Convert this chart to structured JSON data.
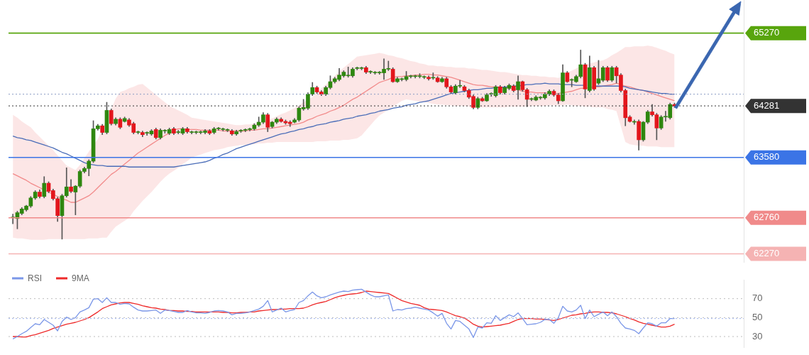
{
  "chart_data": [
    {
      "type": "candlestick",
      "tick_labels": "y",
      "legend": false,
      "ylim": [
        62150,
        65720
      ],
      "yticks": [
        62270,
        62760,
        63580,
        64281,
        65270
      ],
      "colors": [
        "#2e870f",
        "#2e870f",
        "#2e870f",
        "#2e870f",
        "#2e870f",
        "#2e870f",
        "#e3161c",
        "#2e870f",
        "#e3161c",
        "#e3161c",
        "#e3161c",
        "#2e870f",
        "#2e870f",
        "#e3161c",
        "#2e870f",
        "#2e870f",
        "#2e870f",
        "#2e870f",
        "#2e870f",
        "#2e870f",
        "#e3161c",
        "#2e870f",
        "#e3161c",
        "#2e870f",
        "#e3161c",
        "#2e870f",
        "#e3161c",
        "#e3161c",
        "#2e870f",
        "#e3161c",
        "#2e870f",
        "#2e870f",
        "#e3161c",
        "#2e870f",
        "#2e870f",
        "#2e870f",
        "#e3161c",
        "#2e870f",
        "#2e870f",
        "#e3161c",
        "#2e870f",
        "#2e870f",
        "#2e870f",
        "#2e870f",
        "#e3161c",
        "#2e870f",
        "#2e870f",
        "#2e870f",
        "#2e870f",
        "#e3161c",
        "#2e870f",
        "#2e870f",
        "#2e870f",
        "#2e870f",
        "#2e870f",
        "#2e870f",
        "#2e870f",
        "#e3161c",
        "#2e870f",
        "#2e870f",
        "#e3161c",
        "#e3161c",
        "#e3161c",
        "#2e870f",
        "#2e870f",
        "#2e870f",
        "#2e870f",
        "#2e870f",
        "#e3161c",
        "#e3161c",
        "#2e870f",
        "#2e870f",
        "#2e870f",
        "#2e870f",
        "#2e870f",
        "#2e870f",
        "#2e870f",
        "#2e870f",
        "#2e870f",
        "#e3161c",
        "#2e870f",
        "#2e870f",
        "#2e870f",
        "#2e870f",
        "#2e870f",
        "#e3161c",
        "#2e870f",
        "#2e870f",
        "#2e870f",
        "#2e870f",
        "#2e870f",
        "#2e870f",
        "#2e870f",
        "#e3161c",
        "#2e870f",
        "#e3161c",
        "#2e870f",
        "#e3161c",
        "#e3161c",
        "#2e870f",
        "#2e870f",
        "#e3161c",
        "#e3161c",
        "#e3161c",
        "#2e870f",
        "#e3161c",
        "#2e870f",
        "#2e870f",
        "#2e870f",
        "#e3161c",
        "#2e870f",
        "#2e870f",
        "#e3161c",
        "#2e870f",
        "#e3161c",
        "#e3161c",
        "#2e870f",
        "#2e870f",
        "#2e870f",
        "#2e870f",
        "#2e870f",
        "#e3161c",
        "#e3161c",
        "#2e870f",
        "#e3161c",
        "#2e870f",
        "#2e870f",
        "#2e870f",
        "#e3161c",
        "#2e870f",
        "#e3161c",
        "#2e870f",
        "#2e870f",
        "#e3161c",
        "#2e870f",
        "#e3161c",
        "#e3161c",
        "#e3161c",
        "#e3161c",
        "#2e870f",
        "#e3161c",
        "#2e870f",
        "#2e870f",
        "#e3161c",
        "#e3161c",
        "#2e870f",
        "#2e870f",
        "#2e870f",
        "#e3161c"
      ],
      "categories": [
        null,
        null,
        null,
        null,
        null,
        null,
        null,
        null,
        null,
        null,
        null,
        null,
        null,
        null,
        null,
        null,
        null,
        null,
        null,
        null,
        null,
        null,
        null,
        null,
        null,
        null,
        null,
        null,
        null,
        null,
        null,
        null,
        null,
        null,
        null,
        null,
        null,
        null,
        null,
        null,
        null,
        null,
        null,
        null,
        null,
        null,
        null,
        null,
        null,
        null,
        null,
        null,
        null,
        null,
        null,
        null,
        null,
        null,
        null,
        null,
        null,
        null,
        null,
        null,
        null,
        null,
        null,
        null,
        null,
        null,
        null,
        null,
        null,
        null,
        null,
        null,
        null,
        null,
        null,
        null,
        null,
        null,
        null,
        null,
        null,
        null,
        null,
        null,
        null,
        null,
        null,
        null,
        null,
        null,
        null,
        null,
        null,
        null,
        null,
        null,
        null,
        null,
        null,
        null,
        null,
        null,
        null,
        null,
        null,
        null,
        null,
        null,
        null,
        null,
        null,
        null,
        null,
        null,
        null,
        null,
        null,
        null,
        null,
        null,
        null,
        null,
        null,
        null,
        null,
        null,
        null,
        null,
        null,
        null,
        null,
        null,
        null,
        null,
        null,
        null,
        null,
        null,
        null,
        null,
        null,
        null,
        null,
        null,
        null
      ],
      "ohlc": [
        [
          62760,
          62810,
          62680,
          62770
        ],
        [
          62750,
          62850,
          62610,
          62830
        ],
        [
          62820,
          62900,
          62800,
          62880
        ],
        [
          62870,
          62930,
          62850,
          62920
        ],
        [
          62920,
          63050,
          62900,
          63030
        ],
        [
          63030,
          63130,
          63010,
          63110
        ],
        [
          63110,
          63140,
          63030,
          63050
        ],
        [
          63050,
          63320,
          63030,
          63230
        ],
        [
          63230,
          63250,
          63100,
          63120
        ],
        [
          63130,
          63150,
          63000,
          63020
        ],
        [
          63020,
          63040,
          62710,
          62790
        ],
        [
          62790,
          63080,
          62470,
          63060
        ],
        [
          63060,
          63440,
          63040,
          63180
        ],
        [
          63180,
          63280,
          63100,
          63120
        ],
        [
          63110,
          63200,
          62800,
          63190
        ],
        [
          63190,
          63410,
          63170,
          63390
        ],
        [
          63390,
          63450,
          63370,
          63430
        ],
        [
          63430,
          63550,
          63330,
          63530
        ],
        [
          63530,
          64080,
          63510,
          63970
        ],
        [
          63970,
          64030,
          63950,
          64010
        ],
        [
          64010,
          64030,
          63890,
          63920
        ],
        [
          63920,
          64330,
          63900,
          64220
        ],
        [
          64220,
          64240,
          64020,
          64040
        ],
        [
          64040,
          64120,
          64020,
          64100
        ],
        [
          64100,
          64120,
          63970,
          63990
        ],
        [
          64070,
          64130,
          64060,
          64110
        ],
        [
          64090,
          64110,
          64000,
          64020
        ],
        [
          64040,
          64060,
          63900,
          63920
        ],
        [
          63920,
          63940,
          63900,
          63920
        ],
        [
          63920,
          63940,
          63860,
          63890
        ],
        [
          63910,
          63930,
          63880,
          63910
        ],
        [
          63900,
          63960,
          63880,
          63940
        ],
        [
          63960,
          63980,
          63830,
          63850
        ],
        [
          63850,
          63970,
          63830,
          63950
        ],
        [
          63940,
          63960,
          63910,
          63940
        ],
        [
          63910,
          63980,
          63890,
          63960
        ],
        [
          63970,
          63990,
          63890,
          63910
        ],
        [
          63920,
          63950,
          63900,
          63920
        ],
        [
          63910,
          63990,
          63890,
          63970
        ],
        [
          63970,
          63990,
          63910,
          63930
        ],
        [
          63920,
          63940,
          63900,
          63920
        ],
        [
          63920,
          63940,
          63900,
          63920
        ],
        [
          63920,
          63940,
          63900,
          63920
        ],
        [
          63920,
          63960,
          63900,
          63940
        ],
        [
          63940,
          63960,
          63890,
          63910
        ],
        [
          63920,
          63990,
          63900,
          63970
        ],
        [
          63970,
          63990,
          63950,
          63970
        ],
        [
          63960,
          63980,
          63940,
          63960
        ],
        [
          63950,
          63970,
          63930,
          63950
        ],
        [
          63940,
          63960,
          63880,
          63900
        ],
        [
          63900,
          63950,
          63880,
          63930
        ],
        [
          63940,
          63960,
          63920,
          63940
        ],
        [
          63950,
          63970,
          63930,
          63950
        ],
        [
          63960,
          63980,
          63940,
          63960
        ],
        [
          63970,
          64040,
          63950,
          64020
        ],
        [
          64020,
          64130,
          64000,
          64060
        ],
        [
          64060,
          64190,
          64040,
          64160
        ],
        [
          64160,
          64180,
          63930,
          63990
        ],
        [
          64000,
          64070,
          63980,
          64060
        ],
        [
          64060,
          64120,
          64040,
          64100
        ],
        [
          64100,
          64120,
          64060,
          64070
        ],
        [
          64070,
          64090,
          64030,
          64050
        ],
        [
          64060,
          64080,
          64000,
          64040
        ],
        [
          64060,
          64110,
          64050,
          64090
        ],
        [
          64090,
          64270,
          64070,
          64250
        ],
        [
          64240,
          64370,
          64220,
          64260
        ],
        [
          64250,
          64460,
          64230,
          64440
        ],
        [
          64440,
          64600,
          64420,
          64530
        ],
        [
          64530,
          64550,
          64450,
          64470
        ],
        [
          64470,
          64490,
          64420,
          64440
        ],
        [
          64440,
          64550,
          64420,
          64530
        ],
        [
          64530,
          64690,
          64510,
          64610
        ],
        [
          64610,
          64670,
          64590,
          64650
        ],
        [
          64640,
          64790,
          64620,
          64700
        ],
        [
          64690,
          64760,
          64670,
          64740
        ],
        [
          64690,
          64810,
          64670,
          64690
        ],
        [
          64690,
          64800,
          64670,
          64780
        ],
        [
          64790,
          64810,
          64770,
          64790
        ],
        [
          64790,
          64810,
          64770,
          64790
        ],
        [
          64800,
          64820,
          64720,
          64740
        ],
        [
          64740,
          64760,
          64720,
          64740
        ],
        [
          64730,
          64750,
          64710,
          64730
        ],
        [
          64730,
          64750,
          64710,
          64730
        ],
        [
          64730,
          64920,
          64640,
          64780
        ],
        [
          64780,
          64890,
          64760,
          64780
        ],
        [
          64780,
          64800,
          64600,
          64610
        ],
        [
          64610,
          64670,
          64600,
          64650
        ],
        [
          64640,
          64660,
          64620,
          64640
        ],
        [
          64640,
          64750,
          64620,
          64680
        ],
        [
          64680,
          64700,
          64660,
          64680
        ],
        [
          64680,
          64700,
          64660,
          64680
        ],
        [
          64680,
          64720,
          64660,
          64680
        ],
        [
          64670,
          64690,
          64650,
          64670
        ],
        [
          64670,
          64690,
          64630,
          64650
        ],
        [
          64660,
          64730,
          64640,
          64660
        ],
        [
          64660,
          64680,
          64600,
          64610
        ],
        [
          64610,
          64670,
          64600,
          64650
        ],
        [
          64650,
          64670,
          64520,
          64540
        ],
        [
          64540,
          64560,
          64450,
          64470
        ],
        [
          64460,
          64570,
          64440,
          64550
        ],
        [
          64550,
          64630,
          64530,
          64550
        ],
        [
          64540,
          64560,
          64470,
          64490
        ],
        [
          64490,
          64510,
          64380,
          64400
        ],
        [
          64410,
          64430,
          64240,
          64260
        ],
        [
          64260,
          64400,
          64240,
          64380
        ],
        [
          64380,
          64400,
          64340,
          64350
        ],
        [
          64350,
          64450,
          64340,
          64430
        ],
        [
          64440,
          64460,
          64410,
          64440
        ],
        [
          64420,
          64560,
          64400,
          64540
        ],
        [
          64540,
          64560,
          64440,
          64460
        ],
        [
          64460,
          64550,
          64440,
          64530
        ],
        [
          64520,
          64580,
          64500,
          64560
        ],
        [
          64550,
          64570,
          64470,
          64490
        ],
        [
          64500,
          64690,
          64370,
          64610
        ],
        [
          64610,
          64620,
          64480,
          64500
        ],
        [
          64500,
          64520,
          64270,
          64370
        ],
        [
          64370,
          64390,
          64350,
          64370
        ],
        [
          64360,
          64420,
          64350,
          64400
        ],
        [
          64390,
          64410,
          64370,
          64390
        ],
        [
          64390,
          64460,
          64370,
          64440
        ],
        [
          64440,
          64500,
          64420,
          64480
        ],
        [
          64480,
          64500,
          64410,
          64430
        ],
        [
          64430,
          64450,
          64310,
          64350
        ],
        [
          64350,
          64840,
          64340,
          64730
        ],
        [
          64730,
          64750,
          64600,
          64610
        ],
        [
          64630,
          64650,
          64540,
          64630
        ],
        [
          64610,
          64700,
          64600,
          64680
        ],
        [
          64680,
          65040,
          64660,
          64840
        ],
        [
          64840,
          64860,
          64390,
          64510
        ],
        [
          64490,
          64960,
          64470,
          64800
        ],
        [
          64800,
          64820,
          64490,
          64510
        ],
        [
          64590,
          64900,
          64570,
          64650
        ],
        [
          64630,
          64820,
          64610,
          64800
        ],
        [
          64800,
          64820,
          64610,
          64630
        ],
        [
          64630,
          64820,
          64610,
          64800
        ],
        [
          64800,
          64820,
          64590,
          64690
        ],
        [
          64700,
          64720,
          64470,
          64490
        ],
        [
          64490,
          64510,
          64010,
          64120
        ],
        [
          64130,
          64150,
          64060,
          64070
        ],
        [
          64060,
          64090,
          64030,
          64060
        ],
        [
          64070,
          64090,
          63680,
          63820
        ],
        [
          63820,
          64070,
          63800,
          64060
        ],
        [
          64060,
          64220,
          64040,
          64200
        ],
        [
          64200,
          64300,
          64140,
          64160
        ],
        [
          64160,
          64180,
          63820,
          63980
        ],
        [
          63980,
          64150,
          63960,
          64130
        ],
        [
          64130,
          64210,
          64070,
          64130
        ],
        [
          64120,
          64320,
          64100,
          64300
        ],
        [
          64300,
          64320,
          64260,
          64281
        ]
      ],
      "series": [
        {
          "type": "line",
          "color": "#4a6db8",
          "values": [
            63870,
            63850,
            63840,
            63820,
            63810,
            63790,
            63770,
            63750,
            63730,
            63710,
            63680,
            63650,
            63630,
            63600,
            63570,
            63540,
            63510,
            63490,
            63480,
            63470,
            63470,
            63460,
            63460,
            63460,
            63460,
            63460,
            63450,
            63450,
            63450,
            63450,
            63450,
            63450,
            63450,
            63450,
            63450,
            63450,
            63450,
            63460,
            63470,
            63480,
            63490,
            63500,
            63510,
            63520,
            63540,
            63570,
            63590,
            63620,
            63640,
            63670,
            63700,
            63720,
            63740,
            63760,
            63780,
            63800,
            63820,
            63840,
            63860,
            63880,
            63900,
            63910,
            63930,
            63940,
            63960,
            63970,
            63990,
            64000,
            64020,
            64030,
            64040,
            64060,
            64070,
            64080,
            64100,
            64110,
            64120,
            64140,
            64150,
            64160,
            64180,
            64190,
            64210,
            64220,
            64230,
            64250,
            64260,
            64270,
            64290,
            64300,
            64310,
            64330,
            64340,
            64350,
            64370,
            64390,
            64410,
            64430,
            64450,
            64460,
            64470,
            64480,
            64490,
            64500,
            64500,
            64510,
            64520,
            64520,
            64530,
            64530,
            64540,
            64540,
            64550,
            64550,
            64560,
            64570,
            64570,
            64580,
            64580,
            64590,
            64580,
            64580,
            64580,
            64570,
            64570,
            64570,
            64560,
            64560,
            64560,
            null,
            64550,
            64550,
            64550,
            64550,
            64550,
            64550,
            64550,
            64540,
            64520,
            64510,
            64500,
            64490,
            64480,
            64470,
            64460,
            64450,
            64450,
            64440,
            64440
          ]
        },
        {
          "type": "line",
          "color": "#f28b8b",
          "values": [
            63360,
            63330,
            63300,
            63270,
            63230,
            63200,
            63170,
            63140,
            63110,
            63080,
            63050,
            63020,
            63000,
            62970,
            62970,
            63000,
            63030,
            63060,
            63110,
            63170,
            63230,
            63290,
            63350,
            63390,
            63440,
            63490,
            63540,
            63590,
            63640,
            63680,
            63720,
            63760,
            63800,
            63840,
            63880,
            63910,
            63950,
            63970,
            63970,
            63960,
            63960,
            63960,
            63950,
            63950,
            63950,
            63950,
            63950,
            63940,
            63940,
            63940,
            63940,
            63940,
            63940,
            63950,
            63950,
            63960,
            63970,
            63970,
            63980,
            63990,
            64000,
            64010,
            64020,
            64030,
            64040,
            64060,
            64090,
            64110,
            64140,
            64160,
            64180,
            64210,
            64230,
            64260,
            64290,
            64330,
            64370,
            64400,
            64440,
            64480,
            64520,
            64560,
            64600,
            64620,
            64640,
            64670,
            64680,
            64680,
            64690,
            64690,
            64700,
            64700,
            64710,
            64710,
            64700,
            64700,
            64690,
            64680,
            64670,
            64650,
            64630,
            64610,
            64590,
            64570,
            64560,
            64560,
            64550,
            64540,
            64540,
            64540,
            64530,
            64520,
            64510,
            64500,
            64480,
            64470,
            64470,
            64460,
            64460,
            64460,
            64450,
            64450,
            64450,
            64460,
            64470,
            64480,
            64500,
            64520,
            64520,
            64530,
            64540,
            64540,
            64550,
            64560,
            64570,
            64590,
            64570,
            64550,
            64540,
            64520,
            64500,
            64490,
            64470,
            64450,
            64430,
            64410,
            64390,
            64370,
            64350
          ],
          "upper": [
            64160,
            64120,
            64070,
            64030,
            63990,
            63920,
            63860,
            63800,
            63740,
            63680,
            63610,
            63540,
            63470,
            63440,
            63410,
            63480,
            63570,
            63660,
            63750,
            63830,
            63970,
            64110,
            64240,
            64380,
            64470,
            64490,
            64520,
            64540,
            64570,
            64580,
            64530,
            64480,
            64430,
            64380,
            64330,
            64280,
            64250,
            64220,
            64190,
            64160,
            64120,
            64110,
            64100,
            64090,
            64080,
            64070,
            64060,
            64050,
            64040,
            64030,
            64020,
            64020,
            64030,
            64030,
            64040,
            64050,
            64060,
            64090,
            64110,
            64140,
            64170,
            64190,
            64220,
            64250,
            64290,
            64330,
            64370,
            64400,
            64460,
            64520,
            64570,
            64630,
            64690,
            64750,
            64800,
            64850,
            64900,
            64950,
            64960,
            64970,
            64980,
            64990,
            65000,
            64990,
            64970,
            64960,
            64940,
            64930,
            64910,
            64890,
            64880,
            64860,
            64850,
            64830,
            64830,
            64820,
            64820,
            64810,
            64810,
            64800,
            64800,
            64800,
            64790,
            64790,
            64780,
            64770,
            64770,
            64760,
            64750,
            64740,
            64740,
            64730,
            64720,
            64710,
            64700,
            64700,
            64690,
            64690,
            64680,
            64680,
            64670,
            64670,
            64660,
            64690,
            64730,
            64760,
            64790,
            64830,
            64840,
            64860,
            64870,
            64890,
            64900,
            64930,
            64970,
            65000,
            65040,
            65080,
            65080,
            65090,
            65090,
            65090,
            65100,
            65090,
            65070,
            65050,
            65030,
            65000,
            64980
          ],
          "lower": [
            62490,
            62480,
            62480,
            62470,
            62460,
            62460,
            62460,
            62460,
            62470,
            62470,
            62470,
            62470,
            62470,
            62470,
            62470,
            62470,
            62470,
            62480,
            62480,
            62480,
            62490,
            62490,
            62570,
            62640,
            62680,
            62720,
            62760,
            62850,
            62920,
            62990,
            63050,
            63110,
            63180,
            63250,
            63310,
            63360,
            63400,
            63440,
            63490,
            63530,
            63580,
            63600,
            63620,
            63640,
            63660,
            63680,
            63690,
            63700,
            63720,
            63730,
            63740,
            63750,
            63750,
            63760,
            63760,
            63770,
            63770,
            63780,
            63780,
            63790,
            63790,
            63790,
            63790,
            63790,
            63790,
            63790,
            63790,
            63790,
            63800,
            63800,
            63800,
            63810,
            63810,
            63810,
            63820,
            63820,
            63830,
            63840,
            63880,
            63950,
            64020,
            64090,
            64150,
            64190,
            64230,
            64270,
            64310,
            64350,
            64370,
            64360,
            64350,
            64340,
            64330,
            64320,
            64310,
            64300,
            64300,
            64290,
            64290,
            64280,
            64280,
            64280,
            64270,
            64270,
            64270,
            64260,
            64260,
            64260,
            64260,
            64260,
            64260,
            64270,
            64270,
            64270,
            64270,
            64270,
            64280,
            64280,
            64280,
            64280,
            64290,
            64290,
            64290,
            64290,
            64300,
            64290,
            64280,
            64280,
            64270,
            64270,
            64260,
            64260,
            64260,
            64240,
            64230,
            64210,
            64000,
            63790,
            63760,
            63750,
            63740,
            63740,
            63730,
            63730,
            63730,
            63720,
            63720,
            63720,
            63720
          ]
        }
      ],
      "ref_lines": [
        {
          "axis": "y",
          "value": 65270,
          "color": "#58a50d",
          "line_style": "solid"
        },
        {
          "axis": "y",
          "value": 64440,
          "color": "#8a9cc4",
          "line_style": "dotted"
        },
        {
          "axis": "y",
          "value": 64281,
          "color": "#333333",
          "line_style": "dotted"
        },
        {
          "axis": "y",
          "value": 63580,
          "color": "#3b74e6",
          "line_style": "solid"
        },
        {
          "axis": "y",
          "value": 62760,
          "color": "#f08a8a",
          "line_style": "solid"
        },
        {
          "axis": "y",
          "value": 62270,
          "color": "#f5b3b3",
          "line_style": "solid"
        }
      ]
    },
    {
      "type": "line",
      "tick_labels": "y",
      "legend": "top left",
      "grid": "y",
      "ylim": [
        18,
        90
      ],
      "yticks": [
        30,
        50,
        70
      ],
      "categories": [
        null,
        null,
        null,
        null,
        null,
        null,
        null,
        null,
        null,
        null,
        null,
        null,
        null,
        null,
        null,
        null,
        null,
        null,
        null,
        null,
        null,
        null,
        null,
        null,
        null,
        null,
        null,
        null,
        null,
        null,
        null,
        null,
        null,
        null,
        null,
        null,
        null,
        null,
        null,
        null,
        null,
        null,
        null,
        null,
        null,
        null,
        null,
        null,
        null,
        null,
        null,
        null,
        null,
        null,
        null,
        null,
        null,
        null,
        null,
        null,
        null,
        null,
        null,
        null,
        null,
        null,
        null,
        null,
        null,
        null,
        null,
        null,
        null,
        null,
        null,
        null,
        null,
        null,
        null,
        null,
        null,
        null,
        null,
        null,
        null,
        null,
        null,
        null,
        null,
        null,
        null,
        null,
        null,
        null,
        null,
        null,
        null,
        null,
        null,
        null,
        null,
        null,
        null,
        null,
        null,
        null,
        null,
        null,
        null,
        null,
        null,
        null,
        null,
        null,
        null,
        null,
        null,
        null,
        null,
        null,
        null,
        null,
        null,
        null,
        null,
        null,
        null,
        null,
        null,
        null,
        null,
        null,
        null,
        null,
        null,
        null,
        null,
        null,
        null,
        null,
        null,
        null,
        null,
        null,
        null,
        null,
        null,
        null,
        null
      ],
      "series": [
        {
          "name": "RSI",
          "color": "#7b97e8",
          "values": [
            27.5,
            30,
            33,
            35.5,
            39.5,
            43.5,
            42.5,
            48,
            45,
            42,
            36,
            46,
            50.5,
            48,
            50,
            56,
            58,
            60.5,
            69.5,
            70,
            66,
            71,
            66,
            66,
            64,
            65,
            64.5,
            61,
            58,
            57,
            57,
            57.5,
            58,
            54.5,
            58,
            57.5,
            56.5,
            55.5,
            55.5,
            57.5,
            56,
            55,
            55,
            54.5,
            55.5,
            57,
            57.5,
            57,
            56,
            53,
            54.5,
            54.5,
            55,
            56,
            57.5,
            59,
            62,
            68,
            56,
            58,
            60,
            56,
            57.5,
            58.5,
            66,
            68,
            73,
            77,
            73,
            71,
            72,
            74,
            75.5,
            77,
            78,
            77.5,
            79,
            79.5,
            80,
            77,
            74,
            72,
            72,
            73,
            74,
            57,
            58.5,
            58,
            59.5,
            60,
            61,
            60,
            59,
            58,
            55,
            51.5,
            54.5,
            44,
            38,
            47,
            46,
            42,
            38,
            29,
            40,
            39,
            44.5,
            44,
            52,
            47,
            50,
            53,
            51,
            55,
            49,
            42.5,
            43,
            43.5,
            45,
            48,
            48,
            44,
            50,
            62,
            57,
            56,
            58,
            63,
            49,
            58,
            51,
            53.5,
            56,
            52,
            56,
            51,
            44,
            39,
            38,
            36.5,
            33,
            39,
            44.5,
            43.5,
            41,
            44.5,
            44.5,
            49,
            49
          ]
        },
        {
          "name": "9MA",
          "color": "#ee2a2a",
          "values": [
            30,
            30,
            29.5,
            29.5,
            31,
            32,
            33.5,
            35,
            36.5,
            38.5,
            40,
            41.5,
            43,
            44,
            45,
            46.5,
            48,
            50,
            53,
            56,
            59.5,
            61.5,
            63.5,
            64.5,
            65.5,
            66,
            66,
            65,
            64,
            62.5,
            61.5,
            60.5,
            60,
            59,
            58.5,
            57.5,
            57.5,
            57,
            57,
            56.5,
            56.5,
            56,
            56,
            56,
            56,
            56,
            56,
            55.5,
            55.5,
            55,
            55,
            55.5,
            55.5,
            56,
            56,
            57,
            57.5,
            58,
            58.5,
            58.5,
            59,
            59,
            59.5,
            59.5,
            59.5,
            60,
            61.5,
            63.5,
            65,
            66,
            67,
            69,
            71,
            72.5,
            73.5,
            74.5,
            75,
            75.5,
            76.5,
            78,
            77.5,
            77,
            76.5,
            76,
            75.5,
            73,
            70.5,
            68,
            66.5,
            65,
            64,
            63,
            60.5,
            59,
            58.5,
            58,
            57.5,
            56,
            54,
            52,
            51,
            49.5,
            46.5,
            43,
            41,
            40,
            40.5,
            41,
            41.5,
            42,
            43,
            44,
            46,
            48,
            49,
            49,
            49,
            48.5,
            48.5,
            48,
            47.5,
            47,
            48,
            49.5,
            51,
            52.5,
            53,
            54,
            54.5,
            55.5,
            56,
            56,
            55.5,
            55.5,
            55,
            54,
            52.5,
            51,
            49,
            47.5,
            45.5,
            44,
            43,
            42,
            41,
            40,
            40,
            41,
            43
          ]
        }
      ],
      "ref_lines": [
        {
          "axis": "y",
          "value": 49,
          "color": "#9fb4ee",
          "line_style": "dotted"
        }
      ]
    }
  ]
}
